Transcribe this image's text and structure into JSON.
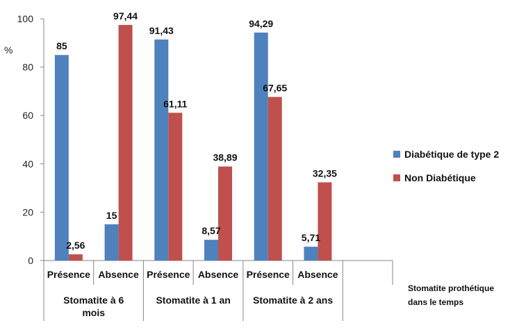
{
  "chart_data": {
    "type": "bar",
    "ylabel": "%",
    "ylim": [
      0,
      100
    ],
    "yticks": [
      0,
      20,
      40,
      60,
      80,
      100
    ],
    "grid": false,
    "legend_position": "right",
    "categories": [
      "Présence",
      "Absence",
      "Présence",
      "Absence",
      "Présence",
      "Absence"
    ],
    "groups": [
      "Stomatite à 6 mois",
      "Stomatite à 1 an",
      "Stomatite à 2 ans"
    ],
    "series": [
      {
        "name": "Diabétique de type 2",
        "color": "#4F81BD",
        "values": [
          85,
          15,
          91.43,
          8.57,
          94.29,
          5.71
        ],
        "labels": [
          "85",
          "15",
          "91,43",
          "8,57",
          "94,29",
          "5,71"
        ]
      },
      {
        "name": "Non Diabétique",
        "color": "#C0504D",
        "values": [
          2.56,
          97.44,
          61.11,
          38.89,
          67.65,
          32.35
        ],
        "labels": [
          "2,56",
          "97,44",
          "61,11",
          "38,89",
          "67,65",
          "32,35"
        ]
      }
    ],
    "axis_note_lines": [
      "Stomatite  prothétique",
      "dans  le temps"
    ]
  }
}
